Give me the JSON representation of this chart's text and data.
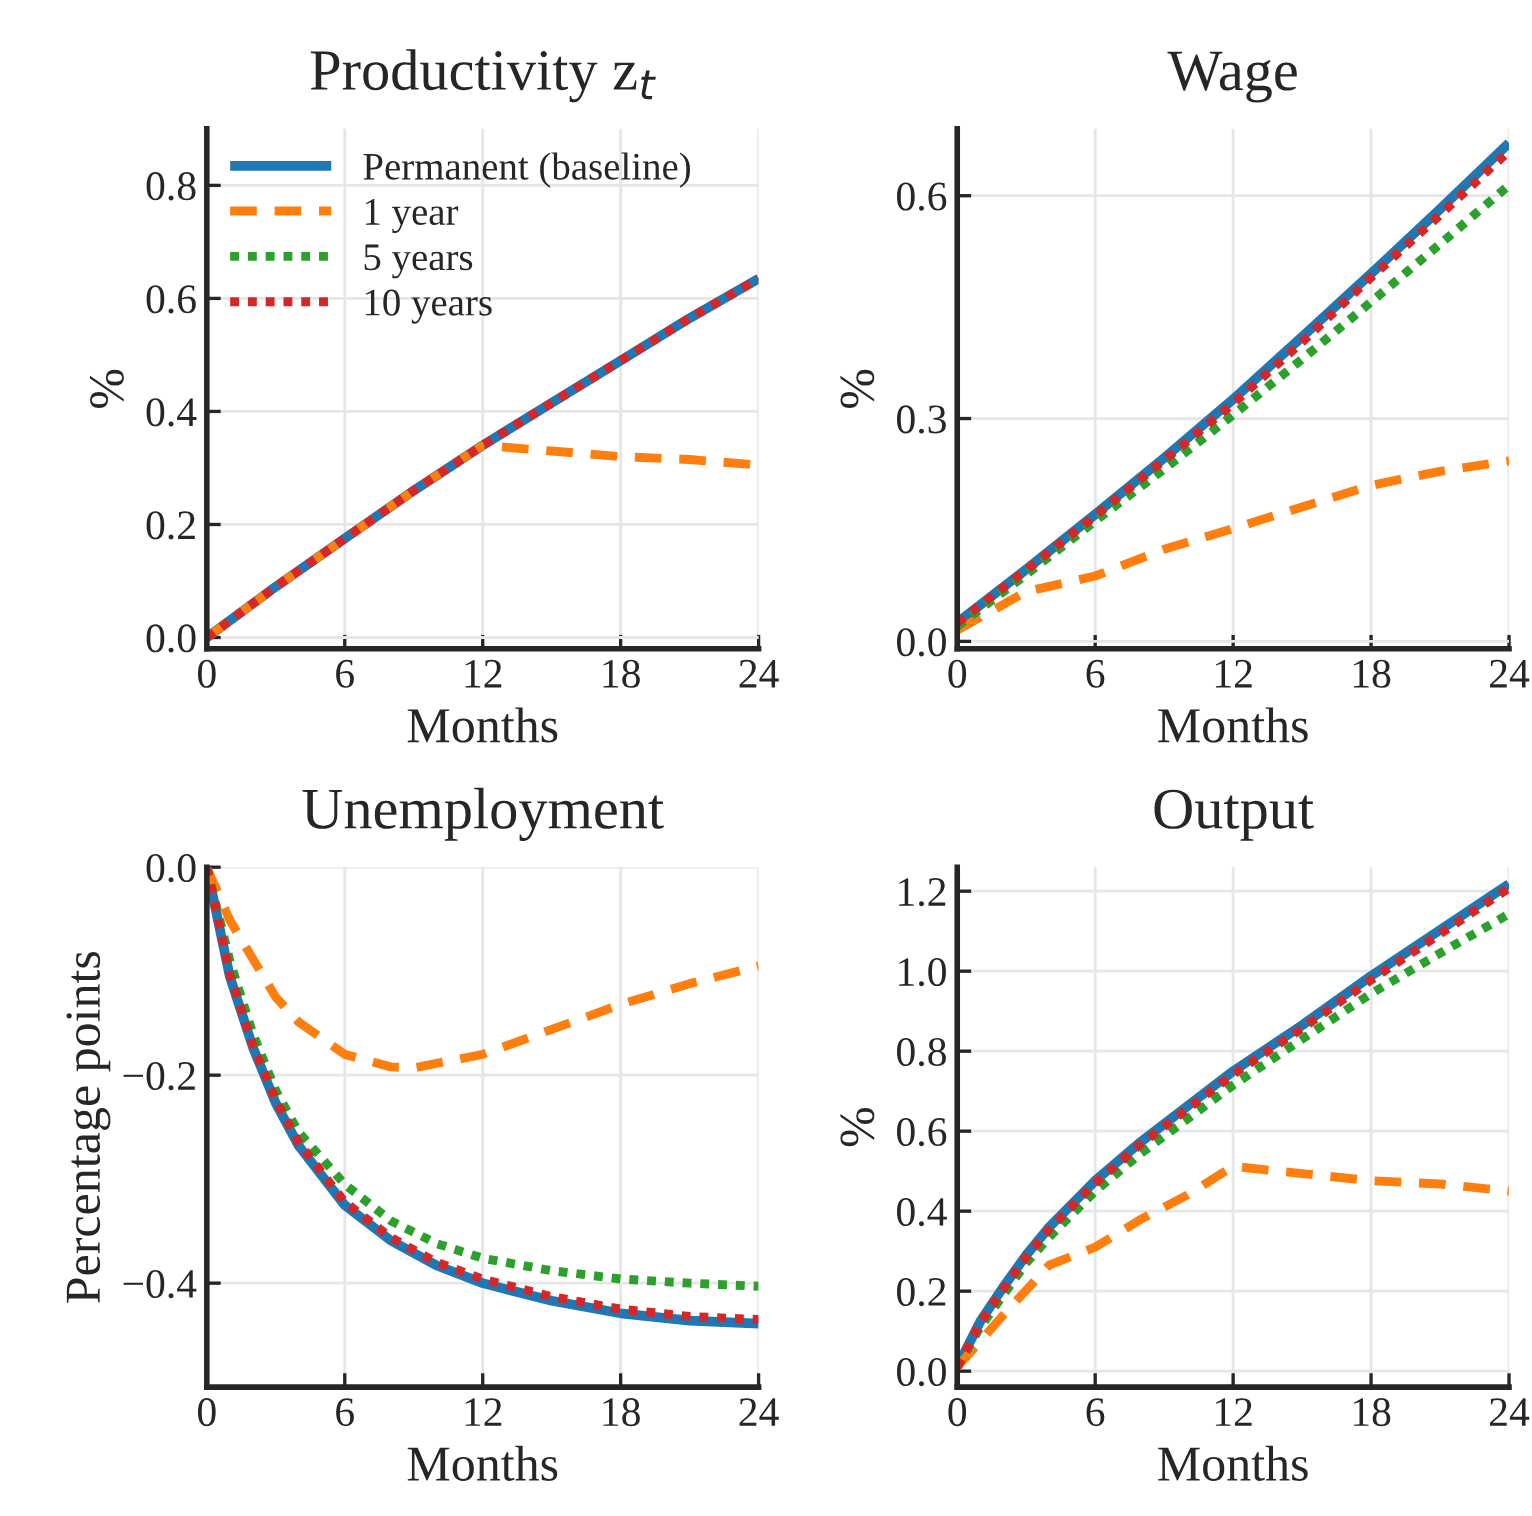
{
  "chart_data": [
    {
      "type": "line",
      "title": "Productivity z$_{t}$",
      "xlabel": "Months",
      "ylabel": "%",
      "xlim": [
        0,
        24
      ],
      "xticks": [
        0,
        6,
        12,
        18,
        24
      ],
      "ylim": [
        -0.02,
        0.9
      ],
      "yticks": [
        {
          "value": 0,
          "label": "0.0"
        },
        0.2,
        0.4,
        0.6,
        0.8
      ],
      "grid": true,
      "legend": "top left",
      "marker": "none",
      "series": [
        {
          "name": "Permanent (baseline)",
          "color": "#1f77b4",
          "line_style": "solid",
          "x": [
            0,
            3,
            6,
            9,
            12,
            15,
            18,
            21,
            24
          ],
          "values": [
            0.0,
            0.09,
            0.175,
            0.26,
            0.34,
            0.415,
            0.49,
            0.565,
            0.635
          ]
        },
        {
          "name": "1 year",
          "color": "#ff7f0e",
          "line_style": "dashed",
          "x": [
            0,
            3,
            6,
            9,
            12,
            15,
            18,
            21,
            24
          ],
          "values": [
            0.0,
            0.09,
            0.175,
            0.26,
            0.34,
            0.33,
            0.32,
            0.315,
            0.305
          ]
        },
        {
          "name": "5 years",
          "color": "#2ca02c",
          "line_style": "dotted"
        },
        {
          "name": "10 years",
          "color": "#d62728",
          "line_style": "dotted",
          "x": [
            0,
            3,
            6,
            9,
            12,
            15,
            18,
            21,
            24
          ],
          "values": [
            0.0,
            0.09,
            0.175,
            0.26,
            0.34,
            0.415,
            0.49,
            0.565,
            0.635
          ]
        }
      ]
    },
    {
      "type": "line",
      "title": "Wage",
      "xlabel": "Months",
      "ylabel": "%",
      "xlim": [
        0,
        24
      ],
      "xticks": [
        0,
        6,
        12,
        18,
        24
      ],
      "ylim": [
        -0.01,
        0.69
      ],
      "yticks": [
        {
          "value": 0,
          "label": "0.0"
        },
        0.3,
        0.6
      ],
      "grid": true,
      "marker": "none",
      "series": [
        {
          "color": "#1f77b4",
          "line_style": "solid",
          "x": [
            0,
            3,
            6,
            9,
            12,
            15,
            18,
            21,
            24
          ],
          "values": [
            0.025,
            0.097,
            0.171,
            0.247,
            0.326,
            0.41,
            0.495,
            0.582,
            0.671
          ]
        },
        {
          "color": "#ff7f0e",
          "line_style": "dashed",
          "x": [
            0,
            3,
            6,
            9,
            12,
            15,
            18,
            21,
            24
          ],
          "values": [
            0.015,
            0.067,
            0.088,
            0.124,
            0.152,
            0.181,
            0.21,
            0.229,
            0.243
          ]
        },
        {
          "color": "#2ca02c",
          "line_style": "dotted",
          "x": [
            0,
            3,
            6,
            9,
            12,
            15,
            18,
            21,
            24
          ],
          "values": [
            0.02,
            0.09,
            0.162,
            0.232,
            0.305,
            0.38,
            0.457,
            0.535,
            0.614
          ]
        },
        {
          "color": "#d62728",
          "line_style": "dotted",
          "x": [
            0,
            3,
            6,
            9,
            12,
            15,
            18,
            21,
            24
          ],
          "values": [
            0.025,
            0.096,
            0.169,
            0.244,
            0.32,
            0.403,
            0.49,
            0.574,
            0.66
          ]
        }
      ]
    },
    {
      "type": "line",
      "title": "Unemployment",
      "xlabel": "Months",
      "ylabel": "Percentage points",
      "xlim": [
        0,
        24
      ],
      "xticks": [
        0,
        6,
        12,
        18,
        24
      ],
      "ylim": [
        -0.5,
        0.0
      ],
      "yticks": [
        {
          "value": 0.0,
          "label": "0.0"
        },
        {
          "value": -0.2,
          "label": "−0.2"
        },
        {
          "value": -0.4,
          "label": "−0.4"
        }
      ],
      "grid": true,
      "marker": "none",
      "series": [
        {
          "color": "#1f77b4",
          "line_style": "solid",
          "x": [
            0,
            1,
            2,
            3,
            4,
            6,
            8,
            10,
            12,
            15,
            18,
            21,
            24
          ],
          "values": [
            0.0,
            -0.105,
            -0.173,
            -0.227,
            -0.268,
            -0.325,
            -0.359,
            -0.383,
            -0.4,
            -0.417,
            -0.429,
            -0.436,
            -0.439
          ]
        },
        {
          "color": "#ff7f0e",
          "line_style": "dashed",
          "x": [
            0,
            1,
            2,
            3,
            4,
            6,
            8,
            9,
            12,
            15,
            18,
            21,
            24
          ],
          "values": [
            0.0,
            -0.051,
            -0.088,
            -0.125,
            -0.149,
            -0.18,
            -0.192,
            -0.193,
            -0.18,
            -0.156,
            -0.132,
            -0.112,
            -0.095
          ]
        },
        {
          "color": "#2ca02c",
          "line_style": "dotted",
          "x": [
            0,
            1,
            2,
            3,
            4,
            6,
            8,
            10,
            12,
            15,
            18,
            21,
            24
          ],
          "values": [
            0.0,
            -0.09,
            -0.16,
            -0.215,
            -0.255,
            -0.305,
            -0.34,
            -0.362,
            -0.376,
            -0.388,
            -0.396,
            -0.4,
            -0.403
          ]
        },
        {
          "color": "#d62728",
          "line_style": "dotted",
          "x": [
            0,
            1,
            2,
            3,
            4,
            6,
            8,
            10,
            12,
            15,
            18,
            21,
            24
          ],
          "values": [
            0.0,
            -0.103,
            -0.171,
            -0.224,
            -0.265,
            -0.322,
            -0.356,
            -0.38,
            -0.396,
            -0.413,
            -0.425,
            -0.432,
            -0.435
          ]
        }
      ]
    },
    {
      "type": "line",
      "title": "Output",
      "xlabel": "Months",
      "ylabel": "%",
      "xlim": [
        0,
        24
      ],
      "xticks": [
        0,
        6,
        12,
        18,
        24
      ],
      "ylim": [
        -0.04,
        1.26
      ],
      "yticks": [
        {
          "value": 0,
          "label": "0.0"
        },
        0.2,
        0.4,
        0.6,
        0.8,
        {
          "value": 1,
          "label": "1.0"
        },
        1.2
      ],
      "grid": true,
      "marker": "none",
      "series": [
        {
          "color": "#1f77b4",
          "line_style": "solid",
          "x": [
            0,
            1,
            2,
            3,
            4,
            6,
            8,
            10,
            12,
            15,
            18,
            21,
            24
          ],
          "values": [
            0.01,
            0.124,
            0.21,
            0.29,
            0.36,
            0.476,
            0.574,
            0.662,
            0.75,
            0.865,
            0.988,
            1.103,
            1.218
          ]
        },
        {
          "color": "#ff7f0e",
          "line_style": "dashed",
          "x": [
            0,
            2,
            4,
            6,
            8,
            10,
            12,
            15,
            18,
            21,
            24
          ],
          "values": [
            0.01,
            0.14,
            0.265,
            0.31,
            0.38,
            0.44,
            0.512,
            0.494,
            0.476,
            0.468,
            0.45
          ]
        },
        {
          "color": "#2ca02c",
          "line_style": "dotted",
          "x": [
            0,
            1,
            2,
            3,
            4,
            6,
            8,
            10,
            12,
            15,
            18,
            21,
            24
          ],
          "values": [
            0.01,
            0.11,
            0.19,
            0.27,
            0.335,
            0.45,
            0.545,
            0.63,
            0.715,
            0.83,
            0.944,
            1.045,
            1.143
          ]
        },
        {
          "color": "#d62728",
          "line_style": "dotted",
          "x": [
            0,
            1,
            2,
            3,
            4,
            6,
            8,
            10,
            12,
            15,
            18,
            21,
            24
          ],
          "values": [
            0.01,
            0.12,
            0.205,
            0.285,
            0.355,
            0.47,
            0.568,
            0.655,
            0.742,
            0.857,
            0.978,
            1.093,
            1.208
          ]
        }
      ]
    }
  ]
}
